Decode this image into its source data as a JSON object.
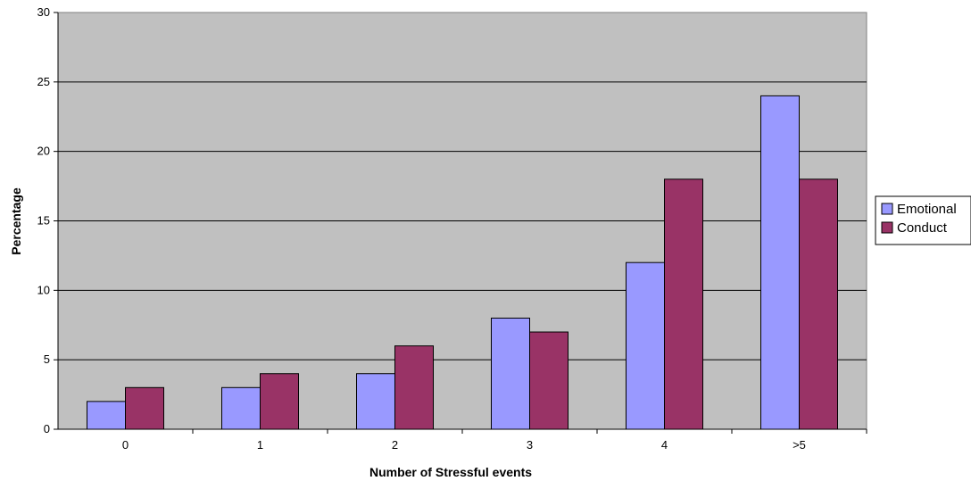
{
  "chart_data": {
    "type": "bar",
    "categories": [
      "0",
      "1",
      "2",
      "3",
      "4",
      ">5"
    ],
    "series": [
      {
        "name": "Emotional",
        "values": [
          2,
          3,
          4,
          8,
          12,
          24
        ],
        "color": "#9999ff"
      },
      {
        "name": "Conduct",
        "values": [
          3,
          4,
          6,
          7,
          18,
          18
        ],
        "color": "#993366"
      }
    ],
    "xlabel": "Number of Stressful events",
    "ylabel": "Percentage",
    "ylim": [
      0,
      30
    ],
    "yticks": [
      "0",
      "5",
      "10",
      "15",
      "20",
      "25",
      "30"
    ],
    "grid": true,
    "plot_background": "#c0c0c0",
    "legend_position": "right"
  }
}
